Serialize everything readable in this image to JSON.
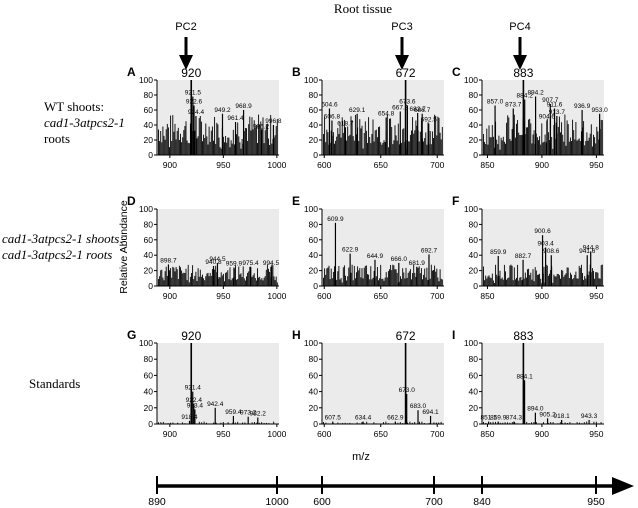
{
  "header": "Root tissue",
  "columns": [
    {
      "label": "PC2",
      "target": 920,
      "axis_start": "890",
      "axis_end": "1000"
    },
    {
      "label": "PC3",
      "target": 672,
      "axis_start": "600",
      "axis_end": "700"
    },
    {
      "label": "PC4",
      "target": 883,
      "axis_start": "840",
      "axis_end": "950"
    }
  ],
  "rows": [
    {
      "line1": "WT shoots:",
      "line2": "cad1-3atpcs2-1",
      "line3": "roots"
    },
    {
      "line1": "cad1-3atpcs2-1 shoots:",
      "line2": "cad1-3atpcs2-1 roots",
      "line3": ""
    },
    {
      "line1": "Standards",
      "line2": "",
      "line3": ""
    }
  ],
  "y_axis_label": "Relative Abundance",
  "x_axis_label": "m/z",
  "colors": {
    "panel_bg": "#ebebeb",
    "peaks": "#000000"
  },
  "chart_data": {
    "type": "bar",
    "ylim": [
      0,
      100
    ],
    "yticks": [
      0,
      20,
      40,
      60,
      80,
      100
    ],
    "panels": [
      {
        "letter": "A",
        "xlim": [
          888,
          1002
        ],
        "xticks": [
          900,
          950,
          1000
        ],
        "highlight": "920",
        "peaks": [
          [
            920,
            100
          ],
          [
            921.5,
            78
          ],
          [
            922.6,
            66
          ],
          [
            924.4,
            52
          ],
          [
            949.2,
            55
          ],
          [
            961.4,
            44
          ],
          [
            968.9,
            60
          ],
          [
            985.2,
            33
          ],
          [
            996.8,
            40
          ]
        ]
      },
      {
        "letter": "B",
        "xlim": [
          598,
          706
        ],
        "xticks": [
          600,
          650,
          700
        ],
        "highlight": "672",
        "peaks": [
          [
            604.6,
            62
          ],
          [
            606.8,
            46
          ],
          [
            618.7,
            37
          ],
          [
            629.1,
            55
          ],
          [
            654.8,
            50
          ],
          [
            667.3,
            58
          ],
          [
            672,
            100
          ],
          [
            673.6,
            66
          ],
          [
            682.7,
            56
          ],
          [
            686.7,
            55
          ],
          [
            692.5,
            42
          ]
        ]
      },
      {
        "letter": "C",
        "xlim": [
          845,
          957
        ],
        "xticks": [
          850,
          900,
          950
        ],
        "highlight": "883",
        "peaks": [
          [
            857.0,
            66
          ],
          [
            873.7,
            62
          ],
          [
            883,
            100
          ],
          [
            884.2,
            74
          ],
          [
            894.2,
            78
          ],
          [
            904.6,
            46
          ],
          [
            907.7,
            68
          ],
          [
            911.6,
            62
          ],
          [
            913.7,
            52
          ],
          [
            936.9,
            60
          ],
          [
            953,
            55
          ]
        ]
      },
      {
        "letter": "D",
        "xlim": [
          888,
          1002
        ],
        "xticks": [
          900,
          950,
          1000
        ],
        "peaks": [
          [
            898.7,
            28
          ],
          [
            940.8,
            26
          ],
          [
            944.5,
            30
          ],
          [
            959.9,
            24
          ],
          [
            975.4,
            25
          ],
          [
            994.5,
            25
          ]
        ]
      },
      {
        "letter": "E",
        "xlim": [
          598,
          706
        ],
        "xticks": [
          600,
          650,
          700
        ],
        "peaks": [
          [
            609.9,
            82
          ],
          [
            622.9,
            42
          ],
          [
            644.9,
            34
          ],
          [
            666.0,
            30
          ],
          [
            681.9,
            25
          ],
          [
            692.7,
            41
          ]
        ]
      },
      {
        "letter": "F",
        "xlim": [
          845,
          957
        ],
        "xticks": [
          850,
          900,
          950
        ],
        "peaks": [
          [
            859.9,
            39
          ],
          [
            882.7,
            34
          ],
          [
            900.6,
            66
          ],
          [
            903.4,
            50
          ],
          [
            908.6,
            40
          ],
          [
            941.6,
            40
          ],
          [
            944.8,
            45
          ]
        ]
      },
      {
        "letter": "G",
        "xlim": [
          888,
          1002
        ],
        "xticks": [
          900,
          950,
          1000
        ],
        "highlight": "920",
        "peaks": [
          [
            918.4,
            4
          ],
          [
            920,
            100
          ],
          [
            921.4,
            40
          ],
          [
            922.4,
            25
          ],
          [
            923.4,
            18
          ],
          [
            942.4,
            20
          ],
          [
            959.4,
            10
          ],
          [
            973.2,
            9
          ],
          [
            982.2,
            8
          ]
        ]
      },
      {
        "letter": "H",
        "xlim": [
          598,
          706
        ],
        "xticks": [
          600,
          650,
          700
        ],
        "highlight": "672",
        "peaks": [
          [
            607.5,
            3
          ],
          [
            634.4,
            3
          ],
          [
            662.9,
            3
          ],
          [
            672,
            100
          ],
          [
            673.0,
            37
          ],
          [
            683.0,
            17
          ],
          [
            694.1,
            10
          ]
        ]
      },
      {
        "letter": "I",
        "xlim": [
          845,
          957
        ],
        "xticks": [
          850,
          900,
          950
        ],
        "highlight": "883",
        "peaks": [
          [
            851.1,
            3
          ],
          [
            859.9,
            3
          ],
          [
            874.3,
            3
          ],
          [
            883,
            100
          ],
          [
            884.1,
            54
          ],
          [
            894.0,
            14
          ],
          [
            905.2,
            7
          ],
          [
            918.1,
            5
          ],
          [
            943.3,
            5
          ]
        ]
      }
    ]
  }
}
